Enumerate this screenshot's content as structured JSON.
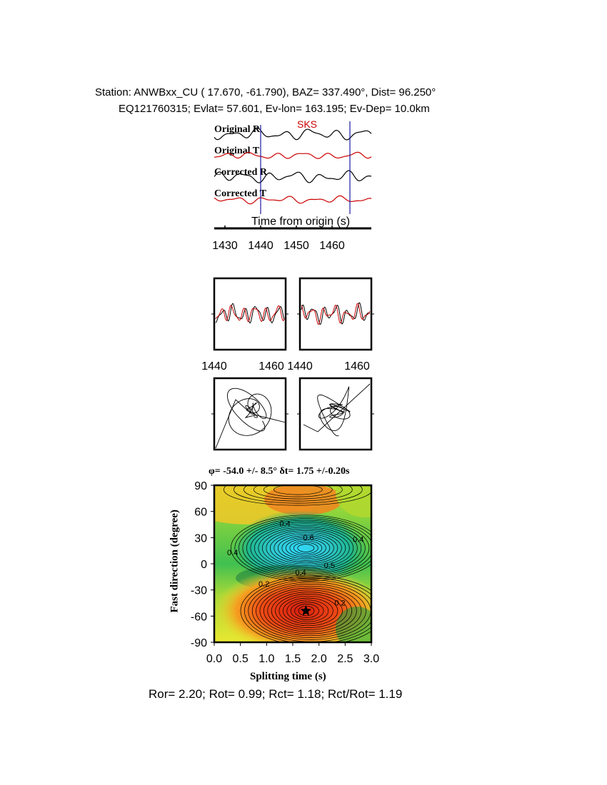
{
  "header": {
    "line1": "Station: ANWBxx_CU (  17.670,  -61.790), BAZ=  337.490°, Dist=   96.250°",
    "line2": "EQ121760315; Evlat=  57.601, Ev-lon= 163.195; Ev-Dep= 10.0km"
  },
  "colors": {
    "black": "#000000",
    "red": "#cc0000",
    "blue": "#1a1aa0",
    "phase": "#cc0000"
  },
  "traces": {
    "phase_label": "SKS",
    "labels": [
      "Original R",
      "Original T",
      "Corrected R",
      "Corrected T"
    ],
    "xlabel": "Time from origin (s)",
    "xticks": [
      1430,
      1440,
      1450,
      1460
    ],
    "xlim": [
      1427,
      1471
    ],
    "window_start": 1440,
    "window_end": 1465
  },
  "waveform_panels": {
    "xticks": [
      1440,
      1460
    ],
    "xlim": [
      1440,
      1465
    ]
  },
  "splitting": {
    "title": "φ= -54.0 +/- 8.5° δt= 1.75 +/-0.20s",
    "xlabel": "Splitting time (s)",
    "ylabel": "Fast direction (degree)",
    "xticks": [
      "0.0",
      "0.5",
      "1.0",
      "1.5",
      "2.0",
      "2.5",
      "3.0"
    ],
    "yticks": [
      "90",
      "60",
      "30",
      "0",
      "-30",
      "-60",
      "-90"
    ],
    "contour_labels": [
      "0.4",
      "0.6",
      "0.4",
      "0.4",
      "0.5",
      "0.4",
      "0.2",
      "0.2"
    ]
  },
  "footer": "Ror= 2.20; Rot= 0.99; Rct= 1.18; Rct/Rot= 1.19",
  "chart_data": {
    "type": "heatmap",
    "title": "φ= -54.0 +/- 8.5° δt= 1.75 +/-0.20s",
    "xlabel": "Splitting time (s)",
    "ylabel": "Fast direction (degree)",
    "xlim": [
      0,
      3
    ],
    "ylim": [
      -90,
      90
    ],
    "best_fit": {
      "dt": 1.75,
      "phi": -54.0
    },
    "minimum_region": {
      "dt": 1.75,
      "phi": 18.0
    }
  }
}
